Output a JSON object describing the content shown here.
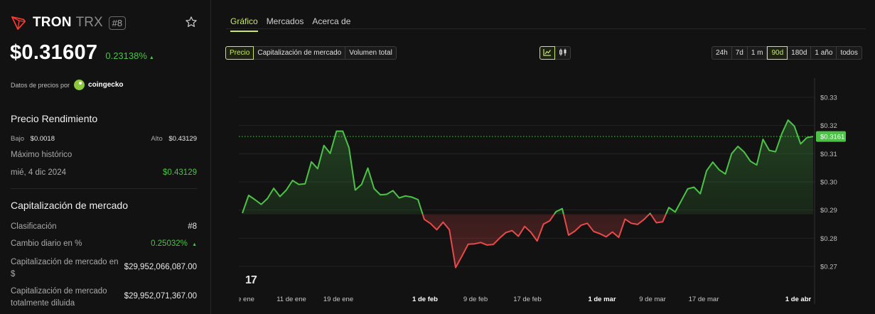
{
  "coin": {
    "name": "TRON",
    "symbol": "TRX",
    "rank": "#8",
    "price": "$0.31607",
    "change_pct": "0.23138%",
    "change_arrow": "▲"
  },
  "provider": {
    "label": "Datos de precios por",
    "name": "coingecko"
  },
  "performance": {
    "title": "Precio Rendimiento",
    "low_label": "Bajo",
    "low_value": "$0.0018",
    "high_label": "Alto",
    "high_value": "$0.43129",
    "ath_label": "Máximo histórico",
    "ath_date": "mié, 4 dic 2024",
    "ath_value": "$0.43129"
  },
  "market_cap": {
    "title": "Capitalización de mercado",
    "rank_label": "Clasificación",
    "rank_value": "#8",
    "daily_change_label": "Cambio diario en %",
    "daily_change_value": "0.25032%",
    "daily_change_arrow": "▲",
    "cap_label": "Capitalización de mercado en $",
    "cap_value": "$29,952,066,087.00",
    "diluted_label": "Capitalización de mercado totalmente diluida",
    "diluted_value": "$29,952,071,367.00"
  },
  "tabs": [
    "Gráfico",
    "Mercados",
    "Acerca de"
  ],
  "metric_buttons": [
    "Precio",
    "Capitalización de mercado",
    "Volumen total"
  ],
  "range_buttons": [
    "24h",
    "7d",
    "1 m",
    "90d",
    "180d",
    "1 año",
    "todos"
  ],
  "active_range": "90d",
  "colors": {
    "accent": "#c7e66c",
    "up": "#4cc247",
    "down": "#e84a4a"
  },
  "chart_data": {
    "type": "line",
    "x_ticks": [
      "e ene",
      "11 de ene",
      "19 de ene",
      "1 de feb",
      "9 de feb",
      "17 de feb",
      "1 de mar",
      "9 de mar",
      "17 de mar",
      "1 de abr"
    ],
    "bold_ticks": [
      "1 de feb",
      "1 de mar",
      "1 de abr"
    ],
    "y_ticks": [
      "$0.33",
      "$0.32",
      "$0.31",
      "$0.30",
      "$0.29",
      "$0.28",
      "$0.27"
    ],
    "ylim": [
      0.265,
      0.335
    ],
    "baseline": 0.2885,
    "last_price_label": "$0.3161",
    "last_price": 0.3161,
    "values": [
      0.2889,
      0.2952,
      0.2937,
      0.292,
      0.2941,
      0.2977,
      0.2948,
      0.2971,
      0.3005,
      0.2991,
      0.2993,
      0.3071,
      0.3047,
      0.3129,
      0.3101,
      0.318,
      0.318,
      0.3121,
      0.2971,
      0.2991,
      0.3049,
      0.2976,
      0.2954,
      0.2956,
      0.2969,
      0.2943,
      0.295,
      0.2946,
      0.2937,
      0.2867,
      0.2852,
      0.283,
      0.2857,
      0.283,
      0.2696,
      0.2736,
      0.2779,
      0.278,
      0.2785,
      0.2776,
      0.2778,
      0.28,
      0.282,
      0.2827,
      0.2807,
      0.2842,
      0.2821,
      0.279,
      0.285,
      0.2862,
      0.2894,
      0.2905,
      0.2811,
      0.2825,
      0.2846,
      0.2853,
      0.2824,
      0.2816,
      0.2805,
      0.2822,
      0.2803,
      0.2868,
      0.2853,
      0.2849,
      0.2866,
      0.2888,
      0.2855,
      0.2858,
      0.2909,
      0.2893,
      0.2934,
      0.2975,
      0.2981,
      0.2958,
      0.3039,
      0.307,
      0.3043,
      0.3028,
      0.31,
      0.3126,
      0.3106,
      0.3073,
      0.306,
      0.3151,
      0.3112,
      0.3107,
      0.3171,
      0.3219,
      0.3198,
      0.3135,
      0.3157,
      0.3161
    ]
  }
}
